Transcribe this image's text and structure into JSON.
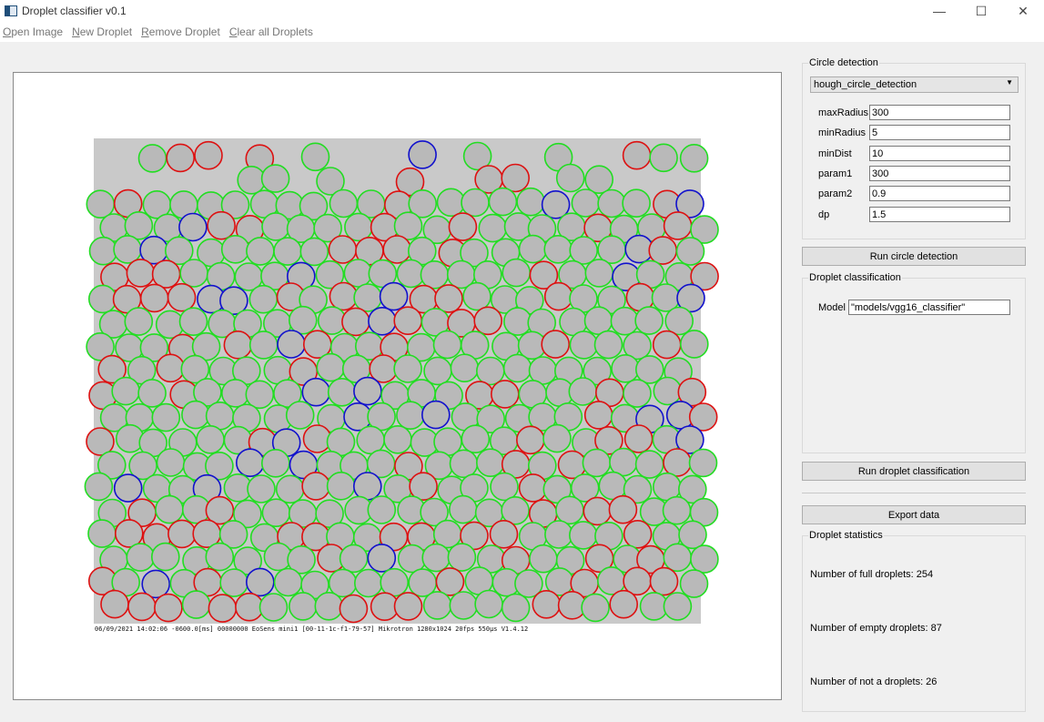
{
  "window": {
    "title": "Droplet classifier v0.1",
    "controls": {
      "minimize": "—",
      "maximize": "☐",
      "close": "✕"
    }
  },
  "menu": {
    "open_image": {
      "first": "O",
      "rest": "pen Image"
    },
    "new_droplet": {
      "first": "N",
      "rest": "ew Droplet"
    },
    "remove_droplet": {
      "first": "R",
      "rest": "emove Droplet"
    },
    "clear_droplets": {
      "first": "C",
      "rest": "lear all Droplets"
    }
  },
  "image": {
    "caption": "06/09/2021 14:02:06 -0600.0[ms] 00000000 EoSens mini1 [00-11-1c-f1-79-57] Mikrotron 1280x1024 20fps 550µs V1.4.12",
    "colors": {
      "full": "#22dd22",
      "empty": "#dd1111",
      "not_droplet": "#1111cc",
      "background": "#c9c9c9"
    }
  },
  "circle_detection": {
    "title": "Circle detection",
    "method": "hough_circle_detection",
    "params": [
      {
        "label": "maxRadius",
        "value": "300"
      },
      {
        "label": "minRadius",
        "value": "5"
      },
      {
        "label": "minDist",
        "value": "10"
      },
      {
        "label": "param1",
        "value": "300"
      },
      {
        "label": "param2",
        "value": "0.9"
      },
      {
        "label": "dp",
        "value": "1.5"
      }
    ],
    "run_label": "Run circle detection"
  },
  "classification": {
    "title": "Droplet classification",
    "model_label": "Model",
    "model_value": "\"models/vgg16_classifier\"",
    "run_label": "Run droplet classification"
  },
  "export_label": "Export data",
  "statistics": {
    "title": "Droplet statistics",
    "full": "Number of full droplets: 254",
    "empty": "Number of empty droplets: 87",
    "not_droplet": "Number of not a droplets: 26"
  }
}
